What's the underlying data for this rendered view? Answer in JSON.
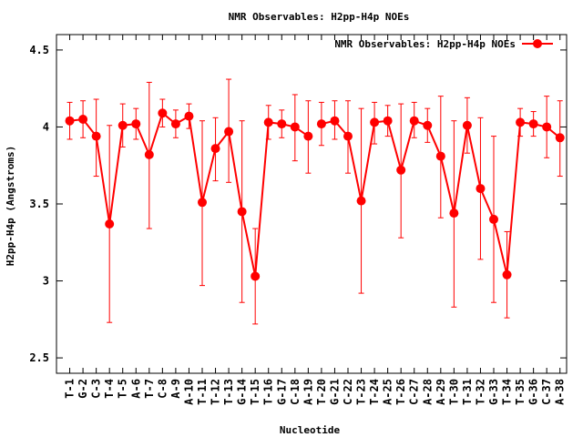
{
  "chart_data": {
    "type": "line",
    "title": "NMR Observables: H2pp-H4p NOEs",
    "xlabel": "Nucleotide",
    "ylabel": "H2pp-H4p (Angstroms)",
    "ylim": [
      2.4,
      4.6
    ],
    "yticks": [
      2.5,
      3,
      3.5,
      4,
      4.5
    ],
    "yticklabels": [
      "2.5",
      "3",
      "3.5",
      "4",
      "4.5"
    ],
    "xlim": [
      0,
      38.5
    ],
    "grid": false,
    "legend_position": "top-right",
    "series": [
      {
        "name": "NMR Observables: H2pp-H4p NOEs",
        "color": "#ff0000",
        "segments": [
          [
            {
              "x": 1,
              "label": "T-1",
              "y": 4.04,
              "lo": 3.92,
              "hi": 4.16
            },
            {
              "x": 2,
              "label": "G-2",
              "y": 4.05,
              "lo": 3.93,
              "hi": 4.17
            },
            {
              "x": 3,
              "label": "C-3",
              "y": 3.94,
              "lo": 3.68,
              "hi": 4.18
            },
            {
              "x": 4,
              "label": "T-4",
              "y": 3.37,
              "lo": 2.73,
              "hi": 4.01
            },
            {
              "x": 5,
              "label": "T-5",
              "y": 4.01,
              "lo": 3.87,
              "hi": 4.15
            },
            {
              "x": 6,
              "label": "A-6",
              "y": 4.02,
              "lo": 3.92,
              "hi": 4.12
            },
            {
              "x": 7,
              "label": "T-7",
              "y": 3.82,
              "lo": 3.34,
              "hi": 4.29
            },
            {
              "x": 8,
              "label": "C-8",
              "y": 4.09,
              "lo": 4.0,
              "hi": 4.18
            },
            {
              "x": 9,
              "label": "A-9",
              "y": 4.02,
              "lo": 3.93,
              "hi": 4.11
            },
            {
              "x": 10,
              "label": "A-10",
              "y": 4.07,
              "lo": 3.99,
              "hi": 4.15
            },
            {
              "x": 11,
              "label": "T-11",
              "y": 3.51,
              "lo": 2.97,
              "hi": 4.04
            },
            {
              "x": 12,
              "label": "T-12",
              "y": 3.86,
              "lo": 3.65,
              "hi": 4.06
            },
            {
              "x": 13,
              "label": "T-13",
              "y": 3.97,
              "lo": 3.64,
              "hi": 4.31
            },
            {
              "x": 14,
              "label": "G-14",
              "y": 3.45,
              "lo": 2.86,
              "hi": 4.04
            },
            {
              "x": 15,
              "label": "T-15",
              "y": 3.03,
              "lo": 2.72,
              "hi": 3.34
            },
            {
              "x": 16,
              "label": "T-16",
              "y": 4.03,
              "lo": 3.92,
              "hi": 4.14
            },
            {
              "x": 17,
              "label": "G-17",
              "y": 4.02,
              "lo": 3.93,
              "hi": 4.11
            },
            {
              "x": 18,
              "label": "C-18",
              "y": 4.0,
              "lo": 3.78,
              "hi": 4.21
            },
            {
              "x": 19,
              "label": "A-19",
              "y": 3.94,
              "lo": 3.7,
              "hi": 4.17
            }
          ],
          [
            {
              "x": 20,
              "label": "T-20",
              "y": 4.02,
              "lo": 3.88,
              "hi": 4.16
            },
            {
              "x": 21,
              "label": "G-21",
              "y": 4.04,
              "lo": 3.92,
              "hi": 4.17
            },
            {
              "x": 22,
              "label": "C-22",
              "y": 3.94,
              "lo": 3.7,
              "hi": 4.17
            },
            {
              "x": 23,
              "label": "T-23",
              "y": 3.52,
              "lo": 2.92,
              "hi": 4.12
            },
            {
              "x": 24,
              "label": "T-24",
              "y": 4.03,
              "lo": 3.89,
              "hi": 4.16
            },
            {
              "x": 25,
              "label": "A-25",
              "y": 4.04,
              "lo": 3.94,
              "hi": 4.14
            },
            {
              "x": 26,
              "label": "T-26",
              "y": 3.72,
              "lo": 3.28,
              "hi": 4.15
            },
            {
              "x": 27,
              "label": "C-27",
              "y": 4.04,
              "lo": 3.93,
              "hi": 4.16
            },
            {
              "x": 28,
              "label": "A-28",
              "y": 4.01,
              "lo": 3.9,
              "hi": 4.12
            },
            {
              "x": 29,
              "label": "A-29",
              "y": 3.81,
              "lo": 3.41,
              "hi": 4.2
            },
            {
              "x": 30,
              "label": "T-30",
              "y": 3.44,
              "lo": 2.83,
              "hi": 4.04
            },
            {
              "x": 31,
              "label": "T-31",
              "y": 4.01,
              "lo": 3.83,
              "hi": 4.19
            },
            {
              "x": 32,
              "label": "T-32",
              "y": 3.6,
              "lo": 3.14,
              "hi": 4.06
            },
            {
              "x": 33,
              "label": "G-33",
              "y": 3.4,
              "lo": 2.86,
              "hi": 3.94
            },
            {
              "x": 34,
              "label": "T-34",
              "y": 3.04,
              "lo": 2.76,
              "hi": 3.32
            },
            {
              "x": 35,
              "label": "T-35",
              "y": 4.03,
              "lo": 3.94,
              "hi": 4.12
            },
            {
              "x": 36,
              "label": "G-36",
              "y": 4.02,
              "lo": 3.94,
              "hi": 4.1
            },
            {
              "x": 37,
              "label": "C-37",
              "y": 4.0,
              "lo": 3.8,
              "hi": 4.2
            },
            {
              "x": 38,
              "label": "A-38",
              "y": 3.93,
              "lo": 3.68,
              "hi": 4.17
            }
          ]
        ]
      }
    ]
  }
}
